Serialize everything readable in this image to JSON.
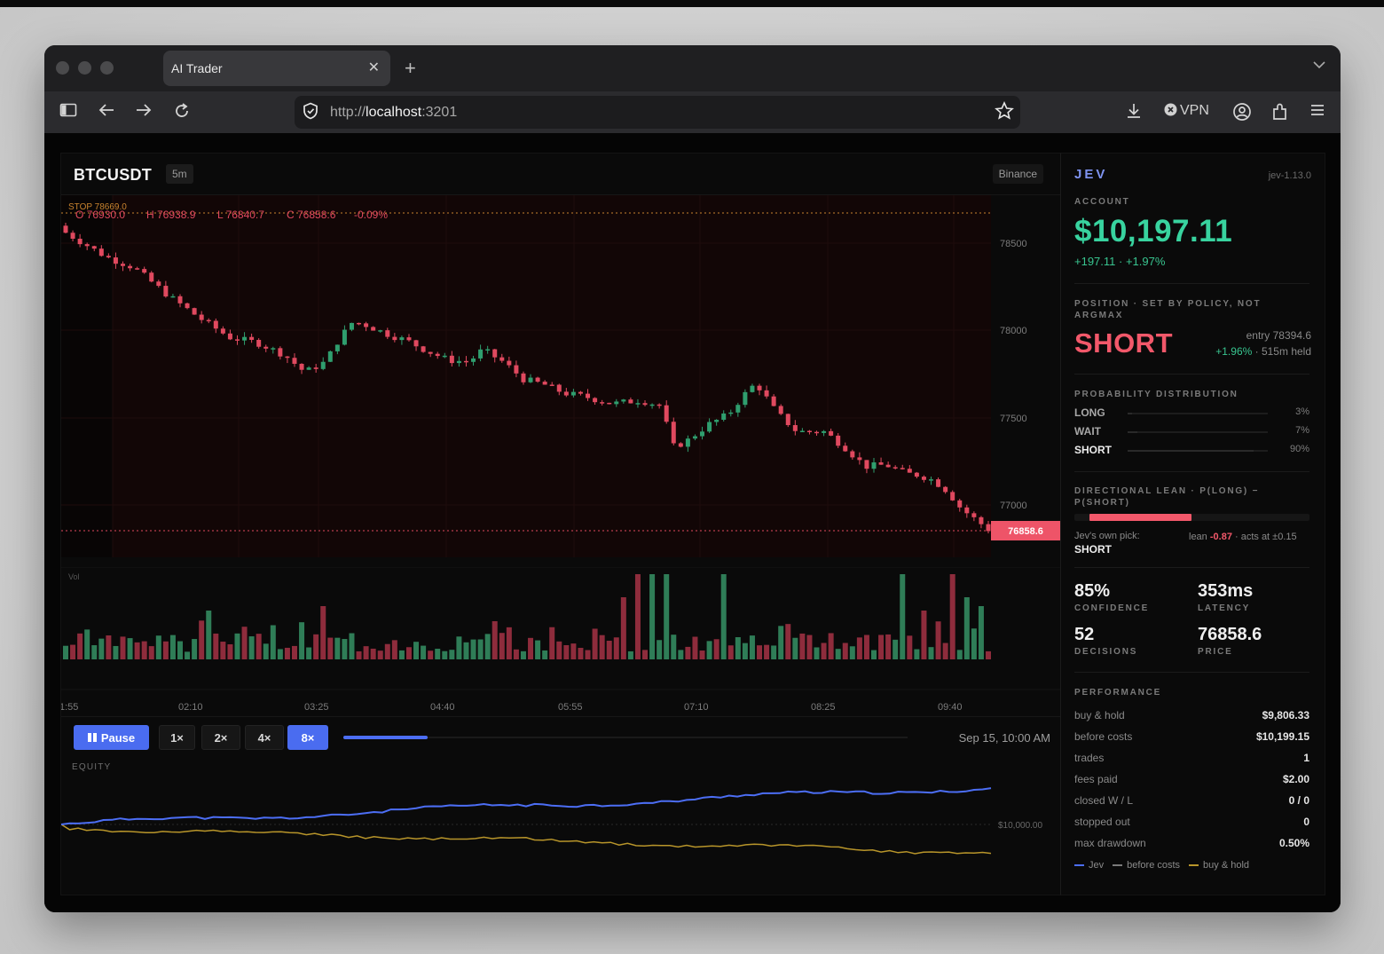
{
  "browser": {
    "tab_title": "AI Trader",
    "tab_close": "✕",
    "new_tab": "+",
    "url_prefix": "http://",
    "url_host": "localhost",
    "url_port": ":3201",
    "vpn_label": "VPN"
  },
  "chart": {
    "symbol": "BTCUSDT",
    "timeframe": "5m",
    "exchange": "Binance",
    "stop_label": "STOP 78669.0",
    "ohlc": {
      "o": "O 76930.0",
      "h": "H 76938.9",
      "l": "L 76840.7",
      "c": "C 76858.6",
      "chg": "-0.09%"
    },
    "price_ticks": [
      "78500",
      "78000",
      "77500",
      "77000"
    ],
    "last_price_label": "76858.6",
    "volume_label": "Vol",
    "time_ticks": [
      "1:55",
      "02:10",
      "03:25",
      "04:40",
      "05:55",
      "07:10",
      "08:25",
      "09:40"
    ],
    "colors": {
      "up": "#2f9e6e",
      "down": "#e0495f",
      "stop": "#c8832e",
      "equity": "#4c6ef5",
      "buyhold": "#b8952a"
    }
  },
  "controls": {
    "pause_label": "Pause",
    "speeds": [
      "1×",
      "2×",
      "4×",
      "8×"
    ],
    "active_speed": "8×",
    "progress": 0.15,
    "datetime": "Sep 15, 10:00 AM"
  },
  "equity": {
    "label": "EQUITY",
    "axis_label": "$10,000.00"
  },
  "panel": {
    "brand": "JEV",
    "version": "jev-1.13.0",
    "account_label": "ACCOUNT",
    "balance": "$10,197.11",
    "pnl": "+197.11  ·  +1.97%",
    "position_label": "POSITION · SET BY POLICY, NOT ARGMAX",
    "position": "SHORT",
    "entry": "entry 78394.6",
    "held_pct": "+1.96%",
    "held_time": " · 515m held",
    "prob_label": "PROBABILITY DISTRIBUTION",
    "probs": [
      {
        "name": "LONG",
        "value": "3%",
        "pct": 3
      },
      {
        "name": "WAIT",
        "value": "7%",
        "pct": 7
      },
      {
        "name": "SHORT",
        "value": "90%",
        "pct": 90
      }
    ],
    "lean_label": "DIRECTIONAL LEAN · P(LONG) − P(SHORT)",
    "lean_value": -0.87,
    "own_pick_label": "Jev's own pick:",
    "own_pick": "SHORT",
    "lean_text_a": "lean ",
    "lean_text_val": "-0.87",
    "lean_text_b": " · acts at ±0.15",
    "stats": [
      {
        "value": "85%",
        "label": "CONFIDENCE"
      },
      {
        "value": "353ms",
        "label": "LATENCY"
      },
      {
        "value": "52",
        "label": "DECISIONS"
      },
      {
        "value": "76858.6",
        "label": "PRICE"
      }
    ],
    "perf_label": "PERFORMANCE",
    "perf": [
      {
        "k": "buy & hold",
        "v": "$9,806.33"
      },
      {
        "k": "before costs",
        "v": "$10,199.15"
      },
      {
        "k": "trades",
        "v": "1"
      },
      {
        "k": "fees paid",
        "v": "$2.00"
      },
      {
        "k": "closed W / L",
        "v": "0 / 0"
      },
      {
        "k": "stopped out",
        "v": "0"
      },
      {
        "k": "max drawdown",
        "v": "0.50%"
      }
    ],
    "legend": [
      {
        "name": "Jev",
        "color": "#4c6ef5"
      },
      {
        "name": "before costs",
        "color": "#7a7a7a"
      },
      {
        "name": "buy & hold",
        "color": "#b8952a"
      }
    ]
  }
}
